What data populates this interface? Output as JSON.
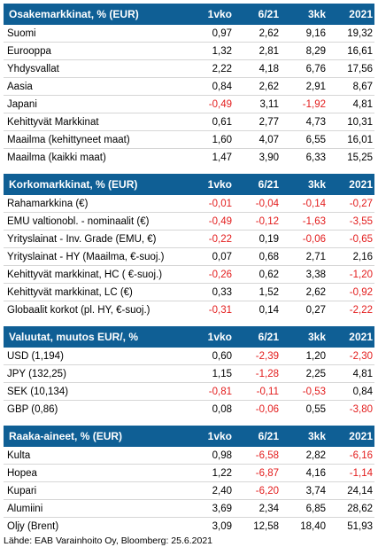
{
  "sections": [
    {
      "title": "Osakemarkkinat, % (EUR)",
      "columns": [
        "1vko",
        "6/21",
        "3kk",
        "2021"
      ],
      "rows": [
        {
          "name": "Suomi",
          "values": [
            "0,97",
            "2,62",
            "9,16",
            "19,32"
          ]
        },
        {
          "name": "Eurooppa",
          "values": [
            "1,32",
            "2,81",
            "8,29",
            "16,61"
          ]
        },
        {
          "name": "Yhdysvallat",
          "values": [
            "2,22",
            "4,18",
            "6,76",
            "17,56"
          ]
        },
        {
          "name": "Aasia",
          "values": [
            "0,84",
            "2,62",
            "2,91",
            "8,67"
          ]
        },
        {
          "name": "Japani",
          "values": [
            "-0,49",
            "3,11",
            "-1,92",
            "4,81"
          ]
        },
        {
          "name": "Kehittyvät Markkinat",
          "values": [
            "0,61",
            "2,77",
            "4,73",
            "10,31"
          ]
        },
        {
          "name": "Maailma (kehittyneet maat)",
          "values": [
            "1,60",
            "4,07",
            "6,55",
            "16,01"
          ]
        },
        {
          "name": "Maailma (kaikki maat)",
          "values": [
            "1,47",
            "3,90",
            "6,33",
            "15,25"
          ]
        }
      ]
    },
    {
      "title": "Korkomarkkinat, % (EUR)",
      "columns": [
        "1vko",
        "6/21",
        "3kk",
        "2021"
      ],
      "rows": [
        {
          "name": "Rahamarkkina (€)",
          "values": [
            "-0,01",
            "-0,04",
            "-0,14",
            "-0,27"
          ]
        },
        {
          "name": "EMU valtionobl. - nominaalit (€)",
          "values": [
            "-0,49",
            "-0,12",
            "-1,63",
            "-3,55"
          ]
        },
        {
          "name": "Yrityslainat - Inv. Grade (EMU, €)",
          "values": [
            "-0,22",
            "0,19",
            "-0,06",
            "-0,65"
          ]
        },
        {
          "name": "Yrityslainat - HY (Maailma, €-suoj.)",
          "values": [
            "0,07",
            "0,68",
            "2,71",
            "2,16"
          ]
        },
        {
          "name": "Kehittyvät markkinat, HC ( €-suoj.)",
          "values": [
            "-0,26",
            "0,62",
            "3,38",
            "-1,20"
          ]
        },
        {
          "name": "Kehittyvät markkinat, LC (€)",
          "values": [
            "0,33",
            "1,52",
            "2,62",
            "-0,92"
          ]
        },
        {
          "name": "Globaalit korkot (pl. HY,  €-suoj.)",
          "values": [
            "-0,31",
            "0,14",
            "0,27",
            "-2,22"
          ]
        }
      ]
    },
    {
      "title": "Valuutat, muutos EUR/,  %",
      "columns": [
        "1vko",
        "6/21",
        "3kk",
        "2021"
      ],
      "rows": [
        {
          "name": "USD (1,194)",
          "values": [
            "0,60",
            "-2,39",
            "1,20",
            "-2,30"
          ]
        },
        {
          "name": "JPY (132,25)",
          "values": [
            "1,15",
            "-1,28",
            "2,25",
            "4,81"
          ]
        },
        {
          "name": "SEK (10,134)",
          "values": [
            "-0,81",
            "-0,11",
            "-0,53",
            "0,84"
          ]
        },
        {
          "name": "GBP (0,86)",
          "values": [
            "0,08",
            "-0,06",
            "0,55",
            "-3,80"
          ]
        }
      ]
    },
    {
      "title": "Raaka-aineet, % (EUR)",
      "columns": [
        "1vko",
        "6/21",
        "3kk",
        "2021"
      ],
      "rows": [
        {
          "name": "Kulta",
          "values": [
            "0,98",
            "-6,58",
            "2,82",
            "-6,16"
          ]
        },
        {
          "name": "Hopea",
          "values": [
            "1,22",
            "-6,87",
            "4,16",
            "-1,14"
          ]
        },
        {
          "name": "Kupari",
          "values": [
            "2,40",
            "-6,20",
            "3,74",
            "24,14"
          ]
        },
        {
          "name": "Alumiini",
          "values": [
            "3,69",
            "2,34",
            "6,85",
            "28,62"
          ]
        },
        {
          "name": "Öljy (Brent)",
          "values": [
            "3,09",
            "12,58",
            "18,40",
            "51,93"
          ]
        }
      ]
    }
  ],
  "source": "Lähde: EAB Varainhoito Oy, Bloomberg: 25.6.2021",
  "colors": {
    "header_bg": "#0f5f95",
    "negative": "#e31c1c"
  }
}
